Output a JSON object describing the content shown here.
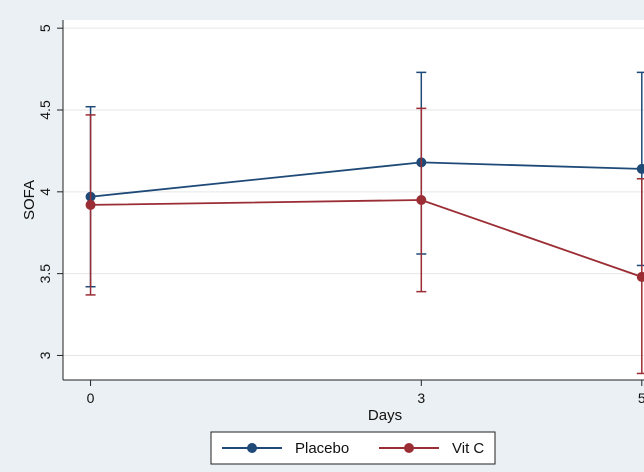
{
  "chart_data": {
    "type": "line",
    "xlabel": "Days",
    "ylabel": "SOFA",
    "x": [
      0,
      3,
      5
    ],
    "xticks": [
      "0",
      "3",
      "5"
    ],
    "yticks": [
      "3",
      "3.5",
      "4",
      "4.5",
      "5"
    ],
    "ylim": [
      2.85,
      5.05
    ],
    "xlim": [
      -0.25,
      5.02
    ],
    "grid": true,
    "legend_position": "bottom",
    "series": [
      {
        "name": "Placebo",
        "color": "#1f4a78",
        "values": [
          3.97,
          4.18,
          4.14
        ],
        "ci_low": [
          3.42,
          3.62,
          3.55
        ],
        "ci_high": [
          4.52,
          4.73,
          4.73
        ]
      },
      {
        "name": "Vit C",
        "color": "#9b2d35",
        "values": [
          3.92,
          3.95,
          3.48
        ],
        "ci_low": [
          3.37,
          3.39,
          2.89
        ],
        "ci_high": [
          4.47,
          4.51,
          4.08
        ]
      }
    ]
  }
}
